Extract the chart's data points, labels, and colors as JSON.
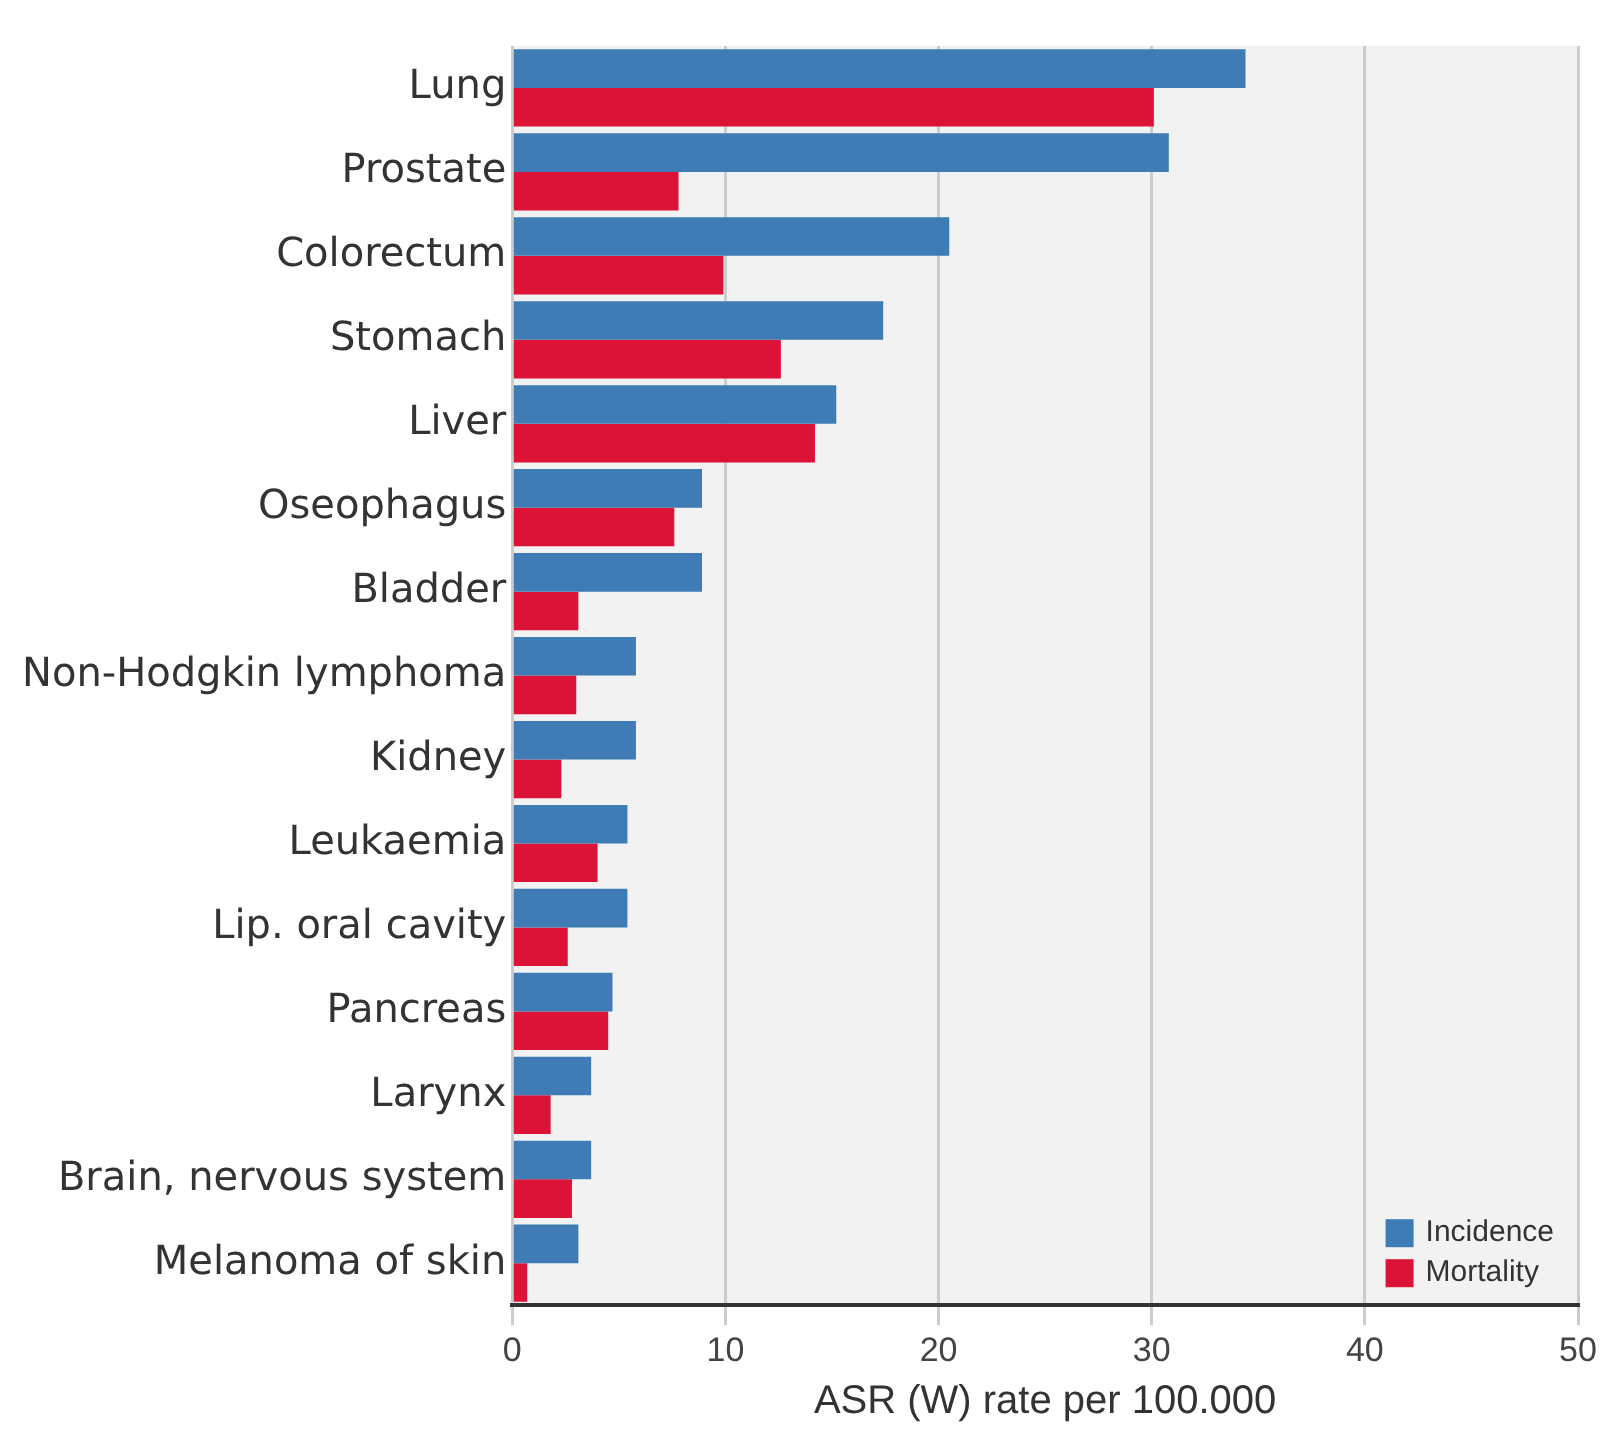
{
  "chart_data": {
    "type": "bar",
    "orientation": "horizontal",
    "xlabel": "ASR (W) rate per 100.000",
    "categories": [
      "Lung",
      "Prostate",
      "Colorectum",
      "Stomach",
      "Liver",
      "Oseophagus",
      "Bladder",
      "Non-Hodgkin lymphoma",
      "Kidney",
      "Leukaemia",
      "Lip. oral cavity",
      "Pancreas",
      "Larynx",
      "Brain, nervous system",
      "Melanoma of skin"
    ],
    "series": [
      {
        "name": "Incidence",
        "color": "#3f7bb5",
        "values": [
          34.4,
          30.8,
          20.5,
          17.4,
          15.2,
          8.9,
          8.9,
          5.8,
          5.8,
          5.4,
          5.4,
          4.7,
          3.7,
          3.7,
          3.1
        ]
      },
      {
        "name": "Mortality",
        "color": "#dc1237",
        "values": [
          30.1,
          7.8,
          9.9,
          12.6,
          14.2,
          7.6,
          3.1,
          3.0,
          2.3,
          4.0,
          2.6,
          4.5,
          1.8,
          2.8,
          0.7
        ]
      }
    ],
    "xlim": [
      0,
      50
    ],
    "xticks": [
      0,
      10,
      20,
      30,
      40,
      50
    ],
    "grid": "x",
    "legend": "bottom right"
  }
}
